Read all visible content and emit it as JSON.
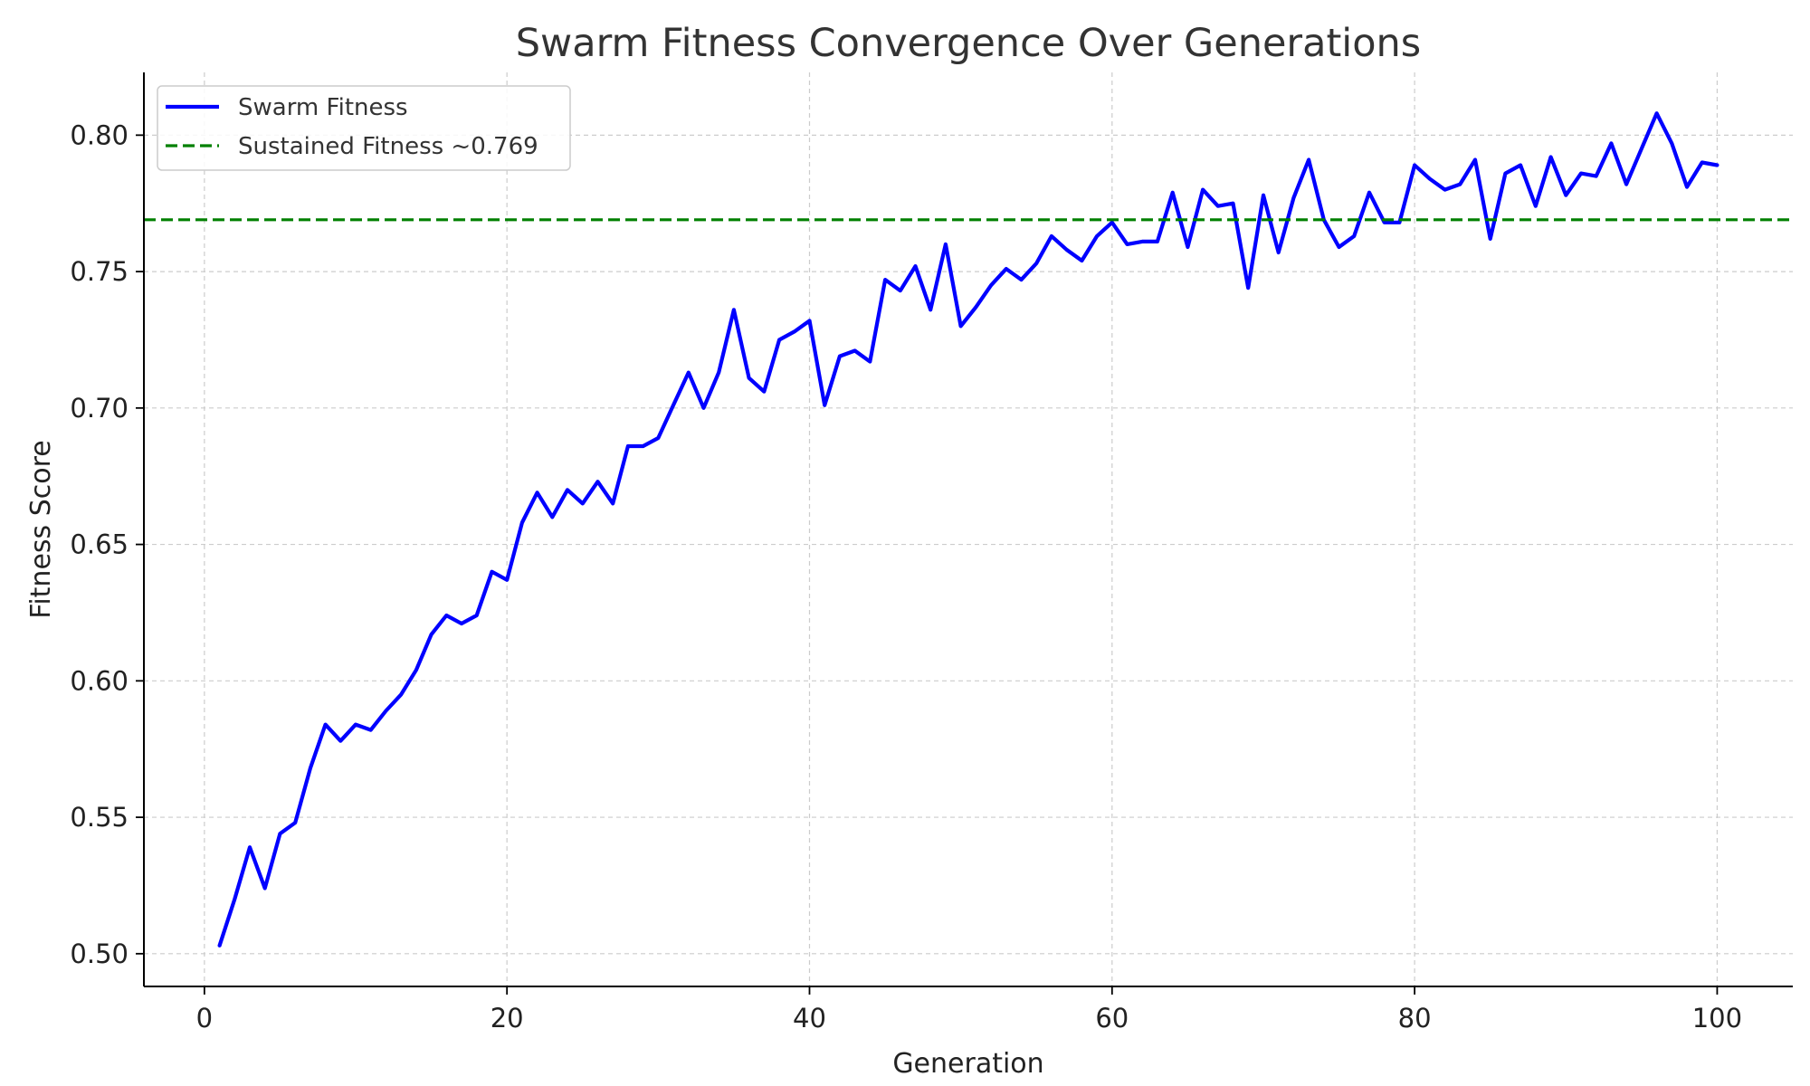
{
  "chart_data": {
    "type": "line",
    "title": "Swarm Fitness Convergence Over Generations",
    "xlabel": "Generation",
    "ylabel": "Fitness Score",
    "xlim": [
      -4,
      105
    ],
    "ylim": [
      0.488,
      0.823
    ],
    "x_ticks": [
      0,
      20,
      40,
      60,
      80,
      100
    ],
    "x_tick_labels": [
      "0",
      "20",
      "40",
      "60",
      "80",
      "100"
    ],
    "y_ticks": [
      0.5,
      0.55,
      0.6,
      0.65,
      0.7,
      0.75,
      0.8
    ],
    "y_tick_labels": [
      "0.50",
      "0.55",
      "0.60",
      "0.65",
      "0.70",
      "0.75",
      "0.80"
    ],
    "grid": true,
    "legend_position": "top-left",
    "series": [
      {
        "name": "Swarm Fitness",
        "color": "#0000ff",
        "style": "solid",
        "x": [
          1,
          2,
          3,
          4,
          5,
          6,
          7,
          8,
          9,
          10,
          11,
          12,
          13,
          14,
          15,
          16,
          17,
          18,
          19,
          20,
          21,
          22,
          23,
          24,
          25,
          26,
          27,
          28,
          29,
          30,
          31,
          32,
          33,
          34,
          35,
          36,
          37,
          38,
          39,
          40,
          41,
          42,
          43,
          44,
          45,
          46,
          47,
          48,
          49,
          50,
          51,
          52,
          53,
          54,
          55,
          56,
          57,
          58,
          59,
          60,
          61,
          62,
          63,
          64,
          65,
          66,
          67,
          68,
          69,
          70,
          71,
          72,
          73,
          74,
          75,
          76,
          77,
          78,
          79,
          80,
          81,
          82,
          83,
          84,
          85,
          86,
          87,
          88,
          89,
          90,
          91,
          92,
          93,
          94,
          95,
          96,
          97,
          98,
          99,
          100
        ],
        "y": [
          0.503,
          0.52,
          0.539,
          0.524,
          0.544,
          0.548,
          0.568,
          0.584,
          0.578,
          0.584,
          0.582,
          0.589,
          0.595,
          0.604,
          0.617,
          0.624,
          0.621,
          0.624,
          0.64,
          0.637,
          0.658,
          0.669,
          0.66,
          0.67,
          0.665,
          0.673,
          0.665,
          0.686,
          0.686,
          0.689,
          0.701,
          0.713,
          0.7,
          0.713,
          0.736,
          0.711,
          0.706,
          0.725,
          0.728,
          0.732,
          0.701,
          0.719,
          0.721,
          0.717,
          0.747,
          0.743,
          0.752,
          0.736,
          0.76,
          0.73,
          0.737,
          0.745,
          0.751,
          0.747,
          0.753,
          0.763,
          0.758,
          0.754,
          0.763,
          0.768,
          0.76,
          0.761,
          0.761,
          0.779,
          0.759,
          0.78,
          0.774,
          0.775,
          0.744,
          0.778,
          0.757,
          0.777,
          0.791,
          0.769,
          0.759,
          0.763,
          0.779,
          0.768,
          0.768,
          0.789,
          0.784,
          0.78,
          0.782,
          0.791,
          0.762,
          0.786,
          0.789,
          0.774,
          0.792,
          0.778,
          0.786,
          0.785,
          0.797,
          0.782,
          0.795,
          0.808,
          0.797,
          0.781,
          0.79,
          0.789
        ]
      },
      {
        "name": "Sustained Fitness ~0.769",
        "color": "#008000",
        "style": "dashed",
        "value": 0.769
      }
    ]
  }
}
